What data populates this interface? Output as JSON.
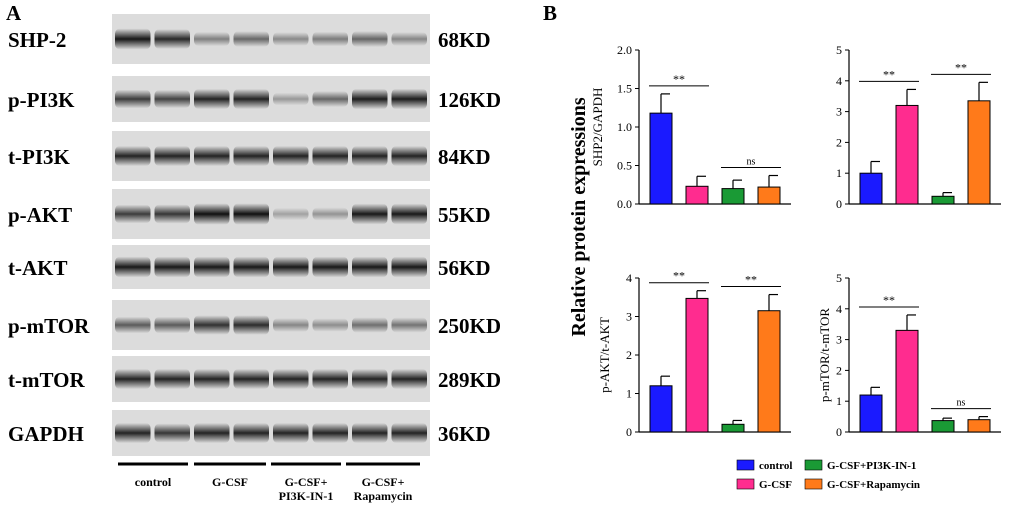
{
  "panel_a": {
    "label": "A",
    "blots": [
      {
        "protein": "SHP-2",
        "size": "68KD",
        "lanes": [
          0.92,
          0.82,
          0.35,
          0.48,
          0.3,
          0.38,
          0.5,
          0.32
        ]
      },
      {
        "protein": "p-PI3K",
        "size": "126KD",
        "lanes": [
          0.72,
          0.68,
          0.85,
          0.85,
          0.22,
          0.5,
          0.88,
          0.88
        ]
      },
      {
        "protein": "t-PI3K",
        "size": "84KD",
        "lanes": [
          0.85,
          0.85,
          0.85,
          0.85,
          0.85,
          0.85,
          0.85,
          0.85
        ]
      },
      {
        "protein": "p-AKT",
        "size": "55KD",
        "lanes": [
          0.72,
          0.75,
          0.95,
          0.95,
          0.18,
          0.25,
          0.9,
          0.9
        ]
      },
      {
        "protein": "t-AKT",
        "size": "56KD",
        "lanes": [
          0.9,
          0.9,
          0.9,
          0.9,
          0.9,
          0.9,
          0.9,
          0.9
        ]
      },
      {
        "protein": "p-mTOR",
        "size": "250KD",
        "lanes": [
          0.55,
          0.55,
          0.78,
          0.8,
          0.32,
          0.28,
          0.45,
          0.42
        ]
      },
      {
        "protein": "t-mTOR",
        "size": "289KD",
        "lanes": [
          0.85,
          0.85,
          0.85,
          0.85,
          0.85,
          0.85,
          0.85,
          0.85
        ]
      },
      {
        "protein": "GAPDH",
        "size": "36KD",
        "lanes": [
          0.85,
          0.75,
          0.85,
          0.85,
          0.85,
          0.85,
          0.85,
          0.85
        ]
      }
    ],
    "groups": [
      {
        "lines": [
          "control"
        ]
      },
      {
        "lines": [
          "G-CSF"
        ]
      },
      {
        "lines": [
          "G-CSF+",
          "PI3K-IN-1"
        ]
      },
      {
        "lines": [
          "G-CSF+",
          "Rapamycin"
        ]
      }
    ]
  },
  "panel_b": {
    "label": "B",
    "shared_ylabel": "Relative protein expressions",
    "legend": [
      {
        "name": "control",
        "color": "#1a1aff"
      },
      {
        "name": "G-CSF",
        "color": "#ff2c8f"
      },
      {
        "name": "G-CSF+PI3K-IN-1",
        "color": "#1a9a35"
      },
      {
        "name": "G-CSF+Rapamycin",
        "color": "#ff7a1a"
      }
    ]
  },
  "chart_data": [
    {
      "type": "bar",
      "ylabel": "SHP2/GAPDH",
      "ylim": [
        0,
        2.0
      ],
      "yticks": [
        "0.0",
        "0.5",
        "1.0",
        "1.5",
        "2.0"
      ],
      "categories": [
        "control",
        "G-CSF",
        "G-CSF+PI3K-IN-1",
        "G-CSF+Rapamycin"
      ],
      "values": [
        1.18,
        0.23,
        0.2,
        0.22
      ],
      "errors": [
        0.25,
        0.13,
        0.11,
        0.15
      ],
      "annotations": [
        {
          "from": 0,
          "to": 1,
          "text": "**"
        },
        {
          "from": 2,
          "to": 3,
          "text": "ns"
        }
      ]
    },
    {
      "type": "bar",
      "ylabel": "",
      "ylim": [
        0,
        5
      ],
      "yticks": [
        "0",
        "1",
        "2",
        "3",
        "4",
        "5"
      ],
      "categories": [
        "control",
        "G-CSF",
        "G-CSF+PI3K-IN-1",
        "G-CSF+Rapamycin"
      ],
      "values": [
        1.0,
        3.2,
        0.25,
        3.35
      ],
      "errors": [
        0.38,
        0.52,
        0.12,
        0.6
      ],
      "annotations": [
        {
          "from": 0,
          "to": 1,
          "text": "**"
        },
        {
          "from": 2,
          "to": 3,
          "text": "**"
        }
      ]
    },
    {
      "type": "bar",
      "ylabel": "p-AKT/t-AKT",
      "ylim": [
        0,
        4
      ],
      "yticks": [
        "0",
        "1",
        "2",
        "3",
        "4"
      ],
      "categories": [
        "control",
        "G-CSF",
        "G-CSF+PI3K-IN-1",
        "G-CSF+Rapamycin"
      ],
      "values": [
        1.2,
        3.47,
        0.2,
        3.15
      ],
      "errors": [
        0.25,
        0.2,
        0.1,
        0.42
      ],
      "annotations": [
        {
          "from": 0,
          "to": 1,
          "text": "**"
        },
        {
          "from": 2,
          "to": 3,
          "text": "**"
        }
      ]
    },
    {
      "type": "bar",
      "ylabel": "p-mTOR/t-mTOR",
      "ylim": [
        0,
        5
      ],
      "yticks": [
        "0",
        "1",
        "2",
        "3",
        "4",
        "5"
      ],
      "categories": [
        "control",
        "G-CSF",
        "G-CSF+PI3K-IN-1",
        "G-CSF+Rapamycin"
      ],
      "values": [
        1.2,
        3.3,
        0.37,
        0.4
      ],
      "errors": [
        0.25,
        0.5,
        0.08,
        0.1
      ],
      "annotations": [
        {
          "from": 0,
          "to": 1,
          "text": "**"
        },
        {
          "from": 2,
          "to": 3,
          "text": "ns"
        }
      ]
    }
  ]
}
